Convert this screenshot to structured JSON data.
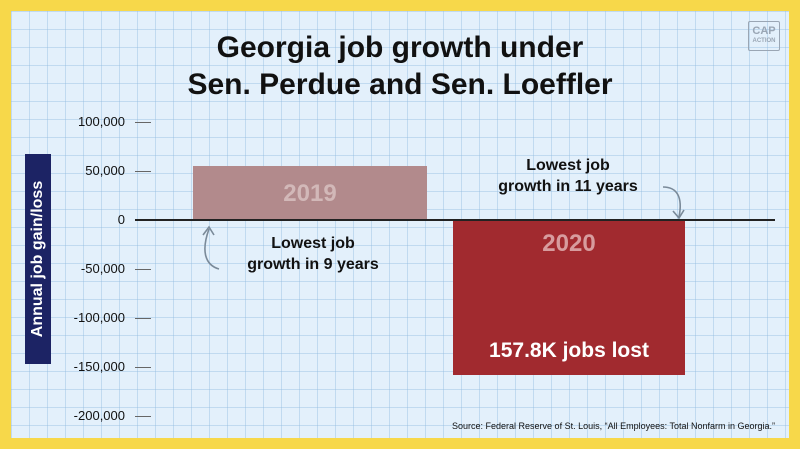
{
  "title_line1": "Georgia job growth under",
  "title_line2": "Sen. Perdue and Sen. Loeffler",
  "logo": {
    "top": "CAP",
    "bottom": "ACTION"
  },
  "source": "Source: Federal Reserve of St. Louis, “All Employees: Total Nonfarm in Georgia.”",
  "colors": {
    "background": "#f7d84a",
    "panel": "#e3f0fb",
    "bar_2019": "#b28a8c",
    "bar_2020": "#a12a2f",
    "ylabel_box": "#1c2364"
  },
  "chart_data": {
    "type": "bar",
    "title": "Georgia job growth under Sen. Perdue and Sen. Loeffler",
    "xlabel": "",
    "ylabel": "Annual job gain/loss",
    "categories": [
      "2019",
      "2020"
    ],
    "values": [
      55000,
      -157800
    ],
    "ylim": [
      -200000,
      100000
    ],
    "yticks": [
      "100,000",
      "50,000",
      "0",
      "-50,000",
      "-100,000",
      "-150,000",
      "-200,000"
    ],
    "grid": true,
    "bar_labels": [
      "2019",
      "2020"
    ],
    "annotations": {
      "bar_2020_value": "157.8K jobs lost",
      "note_2019": [
        "Lowest job",
        "growth in 9 years"
      ],
      "note_2020": [
        "Lowest job",
        "growth in 11 years"
      ]
    }
  }
}
